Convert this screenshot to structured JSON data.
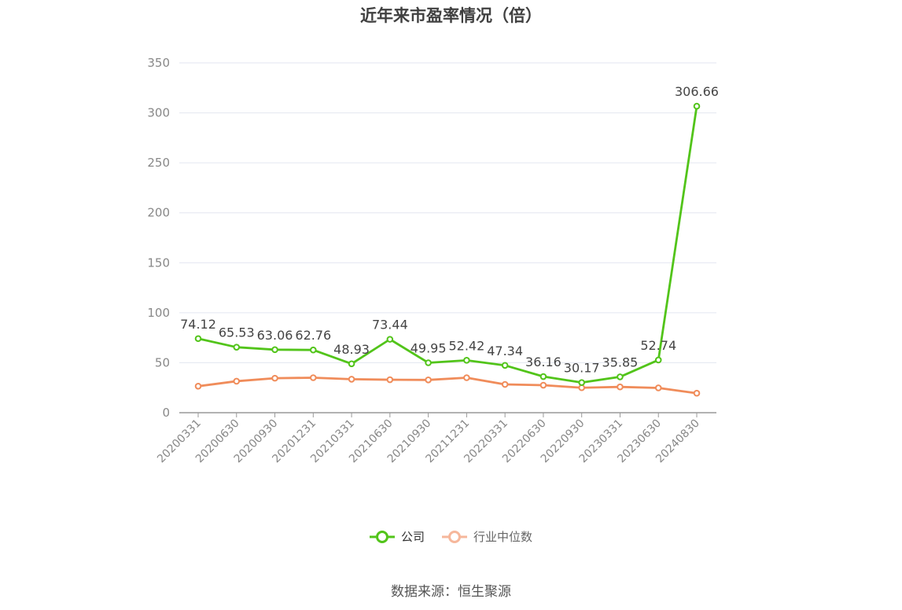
{
  "chart_data": {
    "type": "line",
    "title": "近年来市盈率情况（倍）",
    "categories": [
      "20200331",
      "20200630",
      "20200930",
      "20201231",
      "20210331",
      "20210630",
      "20210930",
      "20211231",
      "20220331",
      "20220630",
      "20220930",
      "20230331",
      "20230630",
      "20240830"
    ],
    "series": [
      {
        "name": "公司",
        "color": "#52c41a",
        "values": [
          74.12,
          65.53,
          63.06,
          62.76,
          48.93,
          73.44,
          49.95,
          52.42,
          47.34,
          36.16,
          30.17,
          35.85,
          52.74,
          306.66
        ],
        "labels_shown": true
      },
      {
        "name": "行业中位数",
        "color": "#f08c5a",
        "values": [
          26.5,
          31.5,
          34.5,
          35,
          33.5,
          33,
          32.8,
          35,
          28.3,
          27.5,
          25,
          25.8,
          24.8,
          19.5
        ],
        "labels_shown": false
      }
    ],
    "yticks": [
      0,
      50,
      100,
      150,
      200,
      250,
      300,
      350
    ],
    "ylim": [
      0,
      350
    ],
    "grid": true,
    "legend_position": "bottom"
  },
  "legend": {
    "series1_label": "公司",
    "series2_label": "行业中位数"
  },
  "footer": {
    "source": "数据来源：恒生聚源"
  }
}
